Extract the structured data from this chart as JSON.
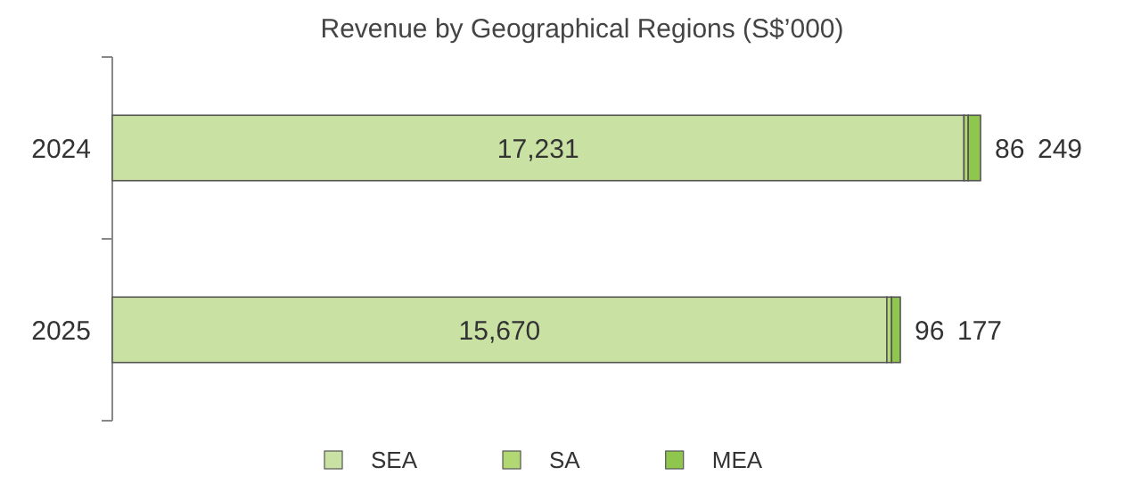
{
  "chart_data": {
    "type": "bar",
    "title": "Revenue by Geographical Regions (S$’000)",
    "orientation": "horizontal",
    "stacked": true,
    "categories": [
      "2024",
      "2025"
    ],
    "series": [
      {
        "name": "SEA",
        "color": "#c9e1a3",
        "values": [
          17231,
          15670
        ],
        "value_labels": [
          "17,231",
          "15,670"
        ]
      },
      {
        "name": "SA",
        "color": "#b2d873",
        "values": [
          86,
          96
        ],
        "value_labels": [
          "86",
          "96"
        ]
      },
      {
        "name": "MEA",
        "color": "#8fc64e",
        "values": [
          249,
          177
        ],
        "value_labels": [
          "249",
          "177"
        ]
      }
    ],
    "legend": "bottom",
    "tick_labels": "y"
  }
}
